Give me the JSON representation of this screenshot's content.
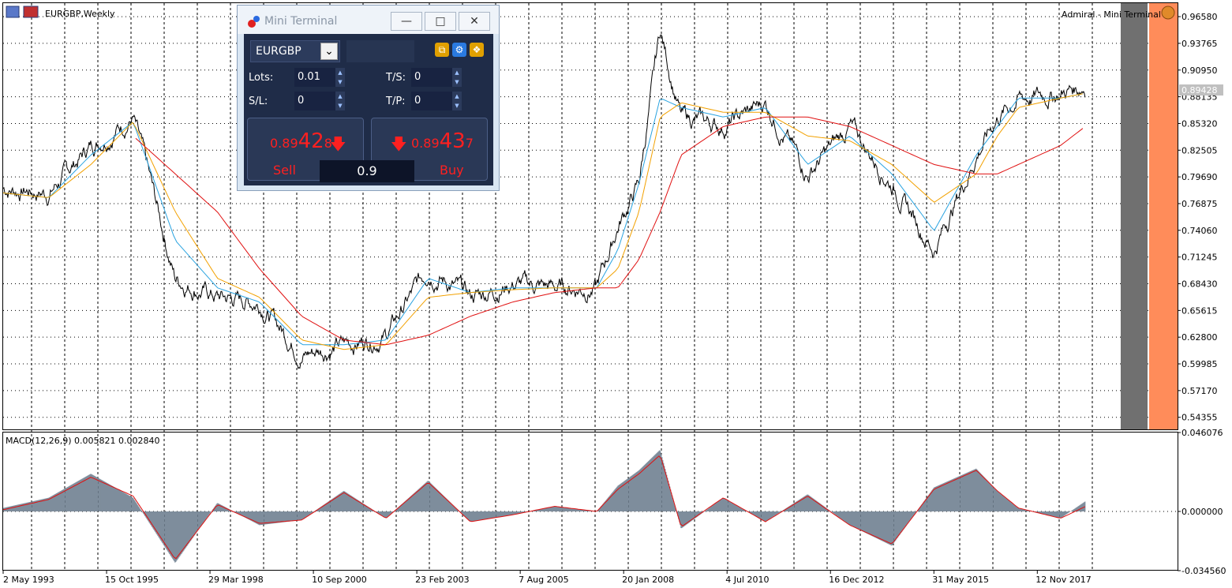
{
  "symbol_title": "EURGBP,Weekly",
  "broker_label": "Admiral - Mini Terminal",
  "colors": {
    "price": "#000000",
    "ma_fast": "#2aa3e0",
    "ma_mid": "#f2a100",
    "ma_slow": "#e01010",
    "macd_hist": "#708090",
    "macd_signal": "#e01010",
    "grid": "#000000",
    "current_price_bg": "#c0c0c0"
  },
  "main_axis": {
    "ticks": [
      "0.96580",
      "0.93765",
      "0.90950",
      "0.88135",
      "0.85320",
      "0.82505",
      "0.79690",
      "0.76875",
      "0.74060",
      "0.71245",
      "0.68430",
      "0.65615",
      "0.62800",
      "0.59985",
      "0.57170",
      "0.54355"
    ],
    "current_price": "0.89428"
  },
  "macd": {
    "label": "MACD(12,26,9) 0.005821 0.002840",
    "ticks": [
      "0.046076",
      "0.000000",
      "-0.034560"
    ]
  },
  "time_axis": [
    "2 May 1993",
    "15 Oct 1995",
    "29 Mar 1998",
    "10 Sep 2000",
    "23 Feb 2003",
    "7 Aug 2005",
    "20 Jan 2008",
    "4 Jul 2010",
    "16 Dec 2012",
    "31 May 2015",
    "12 Nov 2017"
  ],
  "mini_terminal": {
    "title": "Mini Terminal",
    "symbol": "EURGBP",
    "lots_label": "Lots:",
    "lots_value": "0.01",
    "sl_label": "S/L:",
    "sl_value": "0",
    "ts_label": "T/S:",
    "ts_value": "0",
    "tp_label": "T/P:",
    "tp_value": "0",
    "sell_price_small": "0.89",
    "sell_price_big": "42",
    "sell_price_tail": "8",
    "buy_price_small": "0.89",
    "buy_price_big": "43",
    "buy_price_tail": "7",
    "sell_label": "Sell",
    "buy_label": "Buy",
    "spread": "0.9"
  },
  "chart_data": [
    {
      "type": "line",
      "title": "EURGBP,Weekly",
      "xlabel": "",
      "ylabel": "",
      "ylim": [
        0.53,
        0.98
      ],
      "x": [
        "1993-05",
        "1994-06",
        "1995-06",
        "1996-06",
        "1997-06",
        "1998-06",
        "1999-06",
        "2000-06",
        "2001-06",
        "2002-06",
        "2003-06",
        "2004-06",
        "2005-06",
        "2006-06",
        "2007-06",
        "2007-12",
        "2008-06",
        "2008-12",
        "2009-06",
        "2010-06",
        "2011-06",
        "2012-06",
        "2013-06",
        "2014-06",
        "2015-06",
        "2016-06",
        "2016-12",
        "2017-06",
        "2018-06",
        "2019-01"
      ],
      "series": [
        {
          "values": [
            0.785,
            0.78,
            0.83,
            0.86,
            0.69,
            0.67,
            0.665,
            0.61,
            0.62,
            0.63,
            0.7,
            0.67,
            0.685,
            0.68,
            0.68,
            0.745,
            0.79,
            0.95,
            0.86,
            0.85,
            0.875,
            0.8,
            0.85,
            0.79,
            0.72,
            0.82,
            0.86,
            0.88,
            0.885,
            0.89428
          ]
        },
        {
          "values": [
            0.78,
            0.775,
            0.82,
            0.855,
            0.73,
            0.68,
            0.665,
            0.62,
            0.62,
            0.625,
            0.69,
            0.675,
            0.68,
            0.68,
            0.68,
            0.72,
            0.79,
            0.88,
            0.87,
            0.86,
            0.87,
            0.81,
            0.84,
            0.8,
            0.74,
            0.82,
            0.85,
            0.88,
            0.88,
            0.885
          ]
        },
        {
          "values": [
            0.78,
            0.775,
            0.81,
            0.855,
            0.76,
            0.69,
            0.67,
            0.625,
            0.615,
            0.62,
            0.67,
            0.675,
            0.678,
            0.68,
            0.68,
            0.7,
            0.76,
            0.86,
            0.875,
            0.865,
            0.865,
            0.84,
            0.835,
            0.81,
            0.77,
            0.8,
            0.84,
            0.87,
            0.88,
            0.885
          ]
        },
        {
          "values": [
            null,
            null,
            null,
            0.84,
            0.8,
            0.76,
            0.7,
            0.65,
            0.625,
            0.62,
            0.63,
            0.65,
            0.665,
            0.675,
            0.68,
            0.68,
            0.71,
            0.76,
            0.82,
            0.85,
            0.86,
            0.86,
            0.85,
            0.83,
            0.81,
            0.8,
            0.8,
            0.81,
            0.83,
            0.85
          ]
        }
      ]
    },
    {
      "type": "bar",
      "title": "MACD(12,26,9) 0.005821 0.002840",
      "ylim": [
        -0.03456,
        0.046076
      ],
      "x": [
        "1993-05",
        "1994-06",
        "1995-06",
        "1996-06",
        "1997-06",
        "1998-06",
        "1999-06",
        "2000-06",
        "2001-06",
        "2002-06",
        "2003-06",
        "2004-06",
        "2005-06",
        "2006-06",
        "2007-06",
        "2007-12",
        "2008-06",
        "2008-12",
        "2009-06",
        "2010-06",
        "2011-06",
        "2012-06",
        "2013-06",
        "2014-06",
        "2015-06",
        "2016-06",
        "2016-12",
        "2017-06",
        "2018-06",
        "2019-01"
      ],
      "series": [
        {
          "name": "MACD",
          "values": [
            0.002,
            0.008,
            0.022,
            0.008,
            -0.03,
            0.005,
            -0.008,
            -0.005,
            0.012,
            -0.004,
            0.018,
            -0.006,
            -0.002,
            0.003,
            0.0,
            0.015,
            0.024,
            0.036,
            -0.01,
            0.008,
            -0.006,
            0.01,
            -0.008,
            -0.02,
            0.014,
            0.025,
            0.012,
            0.002,
            -0.004,
            0.005821
          ]
        },
        {
          "name": "Signal",
          "values": [
            0.001,
            0.007,
            0.02,
            0.009,
            -0.028,
            0.004,
            -0.007,
            -0.005,
            0.011,
            -0.004,
            0.017,
            -0.006,
            -0.002,
            0.003,
            0.0,
            0.013,
            0.022,
            0.033,
            -0.009,
            0.008,
            -0.006,
            0.009,
            -0.008,
            -0.019,
            0.013,
            0.024,
            0.012,
            0.002,
            -0.004,
            0.00284
          ]
        }
      ]
    }
  ]
}
